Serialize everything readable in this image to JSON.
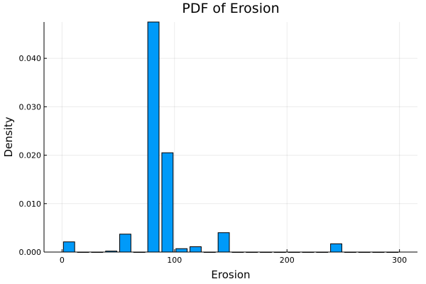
{
  "chart_data": {
    "type": "bar",
    "title": "PDF of Erosion",
    "xlabel": "Erosion",
    "ylabel": "Density",
    "xlim": [
      -16,
      316
    ],
    "ylim": [
      0,
      0.0475
    ],
    "xticks": [
      0,
      100,
      200,
      300
    ],
    "xtick_labels": [
      "0",
      "100",
      "200",
      "300"
    ],
    "yticks": [
      0,
      0.01,
      0.02,
      0.03,
      0.04
    ],
    "ytick_labels": [
      "0.000",
      "0.010",
      "0.020",
      "0.030",
      "0.040"
    ],
    "grid": true,
    "legend": "none",
    "bar_width": 10,
    "bar_color": "#009af9",
    "x": [
      6.25,
      18.75,
      31.25,
      43.75,
      56.25,
      68.75,
      81.25,
      93.75,
      106.25,
      118.75,
      131.25,
      143.75,
      156.25,
      168.75,
      181.25,
      193.75,
      206.25,
      218.75,
      231.25,
      243.75,
      256.25,
      268.75,
      281.25,
      293.75
    ],
    "values": [
      0.0021,
      0,
      0,
      0.0002,
      0.0037,
      0,
      0.0475,
      0.0205,
      0.0007,
      0.0011,
      0,
      0.004,
      0,
      0,
      0,
      0,
      0,
      0,
      0,
      0.0017,
      0,
      0,
      0,
      0
    ]
  }
}
